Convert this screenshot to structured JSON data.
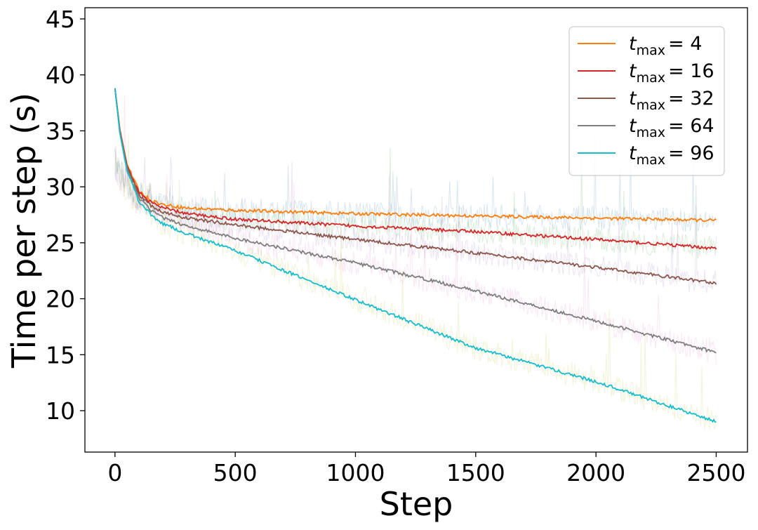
{
  "chart_data": {
    "type": "line",
    "xlabel": "Step",
    "ylabel": "Time per step (s)",
    "xlim": [
      -125,
      2630
    ],
    "ylim": [
      6.3,
      46
    ],
    "xticks": [
      0,
      500,
      1000,
      1500,
      2000,
      2500
    ],
    "yticks": [
      10,
      15,
      20,
      25,
      30,
      35,
      40,
      45
    ],
    "grid": false,
    "legend_position": "top-right",
    "series": [
      {
        "name": "t_max = 4",
        "var": "t",
        "sub": "max",
        "rhs": "= 4",
        "color": "#ff7f0e",
        "x": [
          0,
          20,
          50,
          100,
          150,
          200,
          300,
          500,
          1000,
          1500,
          2000,
          2500
        ],
        "y": [
          38.8,
          35.2,
          32.0,
          29.6,
          28.8,
          28.4,
          28.1,
          27.9,
          27.6,
          27.4,
          27.2,
          27.0
        ]
      },
      {
        "name": "t_max = 16",
        "var": "t",
        "sub": "max",
        "rhs": "= 16",
        "color": "#d62728",
        "x": [
          0,
          20,
          50,
          100,
          150,
          200,
          300,
          500,
          1000,
          1500,
          2000,
          2500
        ],
        "y": [
          38.8,
          35.1,
          31.9,
          29.5,
          28.6,
          28.1,
          27.6,
          27.1,
          26.5,
          26.0,
          25.3,
          24.5
        ]
      },
      {
        "name": "t_max = 32",
        "var": "t",
        "sub": "max",
        "rhs": "= 32",
        "color": "#8c564b",
        "x": [
          0,
          20,
          50,
          100,
          150,
          200,
          300,
          500,
          1000,
          1500,
          2000,
          2500
        ],
        "y": [
          38.8,
          35.0,
          31.8,
          29.3,
          28.3,
          27.7,
          27.2,
          26.6,
          25.3,
          24.1,
          22.8,
          21.4
        ]
      },
      {
        "name": "t_max = 64",
        "var": "t",
        "sub": "max",
        "rhs": "= 64",
        "color": "#7f7f7f",
        "x": [
          0,
          20,
          50,
          100,
          150,
          200,
          300,
          500,
          1000,
          1500,
          2000,
          2500
        ],
        "y": [
          38.8,
          34.9,
          31.6,
          29.0,
          27.9,
          27.2,
          26.5,
          25.4,
          23.2,
          20.7,
          18.0,
          15.2
        ]
      },
      {
        "name": "t_max = 96",
        "var": "t",
        "sub": "max",
        "rhs": "= 96",
        "color": "#17becf",
        "x": [
          0,
          20,
          50,
          100,
          150,
          200,
          300,
          500,
          1000,
          1500,
          2000,
          2500
        ],
        "y": [
          38.8,
          34.8,
          31.4,
          28.7,
          27.5,
          26.7,
          25.8,
          24.3,
          19.9,
          15.6,
          12.6,
          9.0
        ]
      }
    ]
  }
}
